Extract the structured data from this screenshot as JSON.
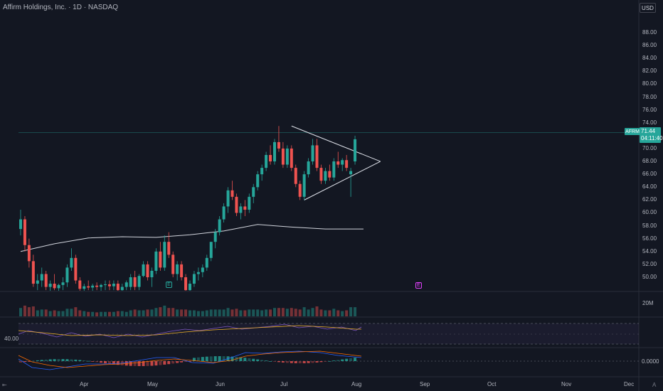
{
  "header": {
    "title": "Affirm Holdings, Inc. · 1D · NASDAQ",
    "currency": "USD"
  },
  "price_axis": {
    "labels": [
      "88.00",
      "86.00",
      "84.00",
      "82.00",
      "80.00",
      "78.00",
      "76.00",
      "74.00",
      "72.00",
      "70.00",
      "68.00",
      "66.00",
      "64.00",
      "62.00",
      "60.00",
      "58.00",
      "56.00",
      "54.00",
      "52.00",
      "50.00"
    ]
  },
  "last_price": {
    "symbol": "AFRM",
    "price": "71.44",
    "countdown": "04:11:40"
  },
  "volume_pane": {
    "label": "20M"
  },
  "rsi_pane": {
    "label": "40.00"
  },
  "macd_pane": {
    "label": "0.0000"
  },
  "time_axis": {
    "labels": [
      "Apr",
      "May",
      "Jun",
      "Jul",
      "Aug",
      "Sep",
      "Oct",
      "Nov",
      "Dec"
    ]
  },
  "events": {
    "earnings_may": "E",
    "earnings_aug": "E"
  },
  "icons": {
    "goto": "goto-realtime-icon",
    "auto_scale": "auto-scale-icon"
  },
  "colors": {
    "background": "#131722",
    "up": "#26a69a",
    "down": "#ef5350",
    "ma_line": "#d1d4dc",
    "rsi": "#7e57c2",
    "rsi_ma": "#f0b429",
    "macd": "#2962ff",
    "signal": "#ff6d00"
  },
  "chart_data": {
    "type": "candlestick",
    "y_range": [
      48,
      90
    ],
    "candles": [
      {
        "o": 57.5,
        "h": 60.5,
        "l": 56.5,
        "c": 59.0
      },
      {
        "o": 59.0,
        "h": 59.5,
        "l": 54.0,
        "c": 55.0
      },
      {
        "o": 55.0,
        "h": 56.0,
        "l": 51.5,
        "c": 52.5
      },
      {
        "o": 52.5,
        "h": 53.5,
        "l": 48.5,
        "c": 49.0
      },
      {
        "o": 49.0,
        "h": 50.5,
        "l": 48.0,
        "c": 49.5
      },
      {
        "o": 49.5,
        "h": 51.5,
        "l": 48.5,
        "c": 50.5
      },
      {
        "o": 50.5,
        "h": 51.0,
        "l": 48.0,
        "c": 48.5
      },
      {
        "o": 48.5,
        "h": 49.5,
        "l": 47.5,
        "c": 49.0
      },
      {
        "o": 49.0,
        "h": 50.5,
        "l": 48.0,
        "c": 48.3
      },
      {
        "o": 48.3,
        "h": 49.0,
        "l": 47.0,
        "c": 48.8
      },
      {
        "o": 48.8,
        "h": 50.0,
        "l": 48.0,
        "c": 49.2
      },
      {
        "o": 49.2,
        "h": 52.0,
        "l": 48.5,
        "c": 51.5
      },
      {
        "o": 51.5,
        "h": 54.5,
        "l": 51.0,
        "c": 53.0
      },
      {
        "o": 53.0,
        "h": 53.5,
        "l": 49.0,
        "c": 49.5
      },
      {
        "o": 49.5,
        "h": 50.0,
        "l": 47.5,
        "c": 48.2
      },
      {
        "o": 48.2,
        "h": 49.0,
        "l": 47.0,
        "c": 48.6
      },
      {
        "o": 48.6,
        "h": 49.5,
        "l": 48.0,
        "c": 48.4
      },
      {
        "o": 48.4,
        "h": 49.0,
        "l": 47.5,
        "c": 48.7
      },
      {
        "o": 48.7,
        "h": 49.2,
        "l": 48.0,
        "c": 48.5
      },
      {
        "o": 48.5,
        "h": 49.0,
        "l": 47.5,
        "c": 48.8
      },
      {
        "o": 48.8,
        "h": 49.5,
        "l": 48.0,
        "c": 48.9
      },
      {
        "o": 48.9,
        "h": 49.5,
        "l": 48.0,
        "c": 48.6
      },
      {
        "o": 48.6,
        "h": 49.5,
        "l": 48.0,
        "c": 49.0
      },
      {
        "o": 49.0,
        "h": 49.5,
        "l": 47.5,
        "c": 48.0
      },
      {
        "o": 48.0,
        "h": 49.0,
        "l": 47.0,
        "c": 48.5
      },
      {
        "o": 48.5,
        "h": 49.5,
        "l": 48.0,
        "c": 49.2
      },
      {
        "o": 48.5,
        "h": 50.5,
        "l": 48.0,
        "c": 50.0
      },
      {
        "o": 50.0,
        "h": 51.0,
        "l": 48.0,
        "c": 48.5
      },
      {
        "o": 48.5,
        "h": 50.5,
        "l": 48.0,
        "c": 50.2
      },
      {
        "o": 50.2,
        "h": 52.5,
        "l": 50.0,
        "c": 52.0
      },
      {
        "o": 52.0,
        "h": 52.5,
        "l": 49.5,
        "c": 50.0
      },
      {
        "o": 50.0,
        "h": 51.5,
        "l": 48.5,
        "c": 51.0
      },
      {
        "o": 51.0,
        "h": 54.5,
        "l": 50.5,
        "c": 54.0
      },
      {
        "o": 54.0,
        "h": 55.5,
        "l": 51.0,
        "c": 51.5
      },
      {
        "o": 51.5,
        "h": 56.5,
        "l": 51.0,
        "c": 55.5
      },
      {
        "o": 55.5,
        "h": 57.0,
        "l": 53.0,
        "c": 53.5
      },
      {
        "o": 53.5,
        "h": 54.0,
        "l": 50.0,
        "c": 50.5
      },
      {
        "o": 50.5,
        "h": 52.5,
        "l": 49.5,
        "c": 52.0
      },
      {
        "o": 52.0,
        "h": 52.5,
        "l": 49.5,
        "c": 50.0
      },
      {
        "o": 50.0,
        "h": 50.5,
        "l": 47.5,
        "c": 48.0
      },
      {
        "o": 48.0,
        "h": 49.5,
        "l": 47.0,
        "c": 49.0
      },
      {
        "o": 49.0,
        "h": 51.0,
        "l": 48.5,
        "c": 50.5
      },
      {
        "o": 50.5,
        "h": 51.5,
        "l": 49.5,
        "c": 50.8
      },
      {
        "o": 50.8,
        "h": 52.0,
        "l": 50.0,
        "c": 51.5
      },
      {
        "o": 51.5,
        "h": 53.5,
        "l": 51.0,
        "c": 53.0
      },
      {
        "o": 53.0,
        "h": 55.5,
        "l": 52.5,
        "c": 55.5
      },
      {
        "o": 55.5,
        "h": 57.5,
        "l": 54.5,
        "c": 57.0
      },
      {
        "o": 57.0,
        "h": 59.5,
        "l": 56.5,
        "c": 59.0
      },
      {
        "o": 59.0,
        "h": 61.5,
        "l": 58.5,
        "c": 61.0
      },
      {
        "o": 61.0,
        "h": 64.0,
        "l": 60.0,
        "c": 63.5
      },
      {
        "o": 63.5,
        "h": 65.0,
        "l": 62.0,
        "c": 62.5
      },
      {
        "o": 62.5,
        "h": 63.0,
        "l": 59.5,
        "c": 60.0
      },
      {
        "o": 60.0,
        "h": 61.5,
        "l": 59.0,
        "c": 61.0
      },
      {
        "o": 61.0,
        "h": 62.0,
        "l": 59.5,
        "c": 60.5
      },
      {
        "o": 60.5,
        "h": 63.0,
        "l": 60.0,
        "c": 62.5
      },
      {
        "o": 62.5,
        "h": 64.5,
        "l": 61.5,
        "c": 64.0
      },
      {
        "o": 64.0,
        "h": 66.5,
        "l": 63.5,
        "c": 66.0
      },
      {
        "o": 66.0,
        "h": 67.5,
        "l": 65.0,
        "c": 67.0
      },
      {
        "o": 67.0,
        "h": 69.5,
        "l": 66.5,
        "c": 69.0
      },
      {
        "o": 69.0,
        "h": 70.5,
        "l": 67.5,
        "c": 68.0
      },
      {
        "o": 68.0,
        "h": 71.5,
        "l": 67.5,
        "c": 71.0
      },
      {
        "o": 71.0,
        "h": 73.5,
        "l": 69.5,
        "c": 70.0
      },
      {
        "o": 70.0,
        "h": 71.0,
        "l": 67.0,
        "c": 67.5
      },
      {
        "o": 67.5,
        "h": 70.5,
        "l": 67.0,
        "c": 70.0
      },
      {
        "o": 70.0,
        "h": 70.5,
        "l": 66.5,
        "c": 67.0
      },
      {
        "o": 67.0,
        "h": 67.5,
        "l": 64.0,
        "c": 64.5
      },
      {
        "o": 64.5,
        "h": 65.0,
        "l": 62.0,
        "c": 62.5
      },
      {
        "o": 62.5,
        "h": 66.5,
        "l": 62.0,
        "c": 66.0
      },
      {
        "o": 66.0,
        "h": 68.5,
        "l": 65.5,
        "c": 68.0
      },
      {
        "o": 68.0,
        "h": 71.5,
        "l": 67.5,
        "c": 70.5
      },
      {
        "o": 70.5,
        "h": 71.5,
        "l": 66.5,
        "c": 67.0
      },
      {
        "o": 67.0,
        "h": 67.5,
        "l": 64.5,
        "c": 65.0
      },
      {
        "o": 65.0,
        "h": 67.0,
        "l": 64.5,
        "c": 66.5
      },
      {
        "o": 66.5,
        "h": 67.5,
        "l": 65.0,
        "c": 65.5
      },
      {
        "o": 65.5,
        "h": 68.5,
        "l": 65.0,
        "c": 68.0
      },
      {
        "o": 68.0,
        "h": 69.5,
        "l": 67.0,
        "c": 67.5
      },
      {
        "o": 67.5,
        "h": 68.5,
        "l": 66.5,
        "c": 68.2
      },
      {
        "o": 68.2,
        "h": 69.0,
        "l": 66.5,
        "c": 67.0
      },
      {
        "o": 66.0,
        "h": 67.0,
        "l": 62.5,
        "c": 66.5
      },
      {
        "o": 68.0,
        "h": 72.0,
        "l": 67.5,
        "c": 71.44
      }
    ],
    "ma_points": [
      [
        0,
        54.0
      ],
      [
        8,
        55.2
      ],
      [
        16,
        56.1
      ],
      [
        24,
        56.3
      ],
      [
        32,
        56.2
      ],
      [
        40,
        56.6
      ],
      [
        48,
        57.2
      ],
      [
        56,
        58.2
      ],
      [
        64,
        57.8
      ],
      [
        72,
        57.5
      ],
      [
        81,
        57.5
      ]
    ],
    "triangle": {
      "upper_start": [
        64,
        73.5
      ],
      "apex": [
        85,
        68.0
      ],
      "lower_start": [
        67,
        62.0
      ]
    },
    "last_price": 71.44
  }
}
